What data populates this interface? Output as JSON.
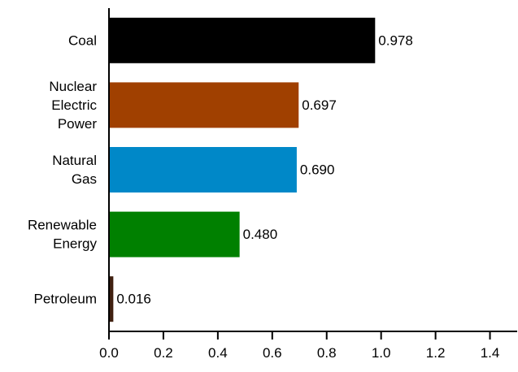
{
  "chart_data": {
    "type": "bar",
    "orientation": "horizontal",
    "title": "",
    "xlabel": "",
    "ylabel": "",
    "categories": [
      [
        "Coal"
      ],
      [
        "Nuclear",
        "Electric",
        "Power"
      ],
      [
        "Natural",
        "Gas"
      ],
      [
        "Renewable",
        "Energy"
      ],
      [
        "Petroleum"
      ]
    ],
    "values": [
      0.978,
      0.697,
      0.69,
      0.48,
      0.016
    ],
    "value_labels": [
      "0.978",
      "0.697",
      "0.690",
      "0.480",
      "0.016"
    ],
    "colors": [
      "#000000",
      "#a04000",
      "#0088c8",
      "#008000",
      "#402010"
    ],
    "xlim": [
      0,
      1.5
    ],
    "xticks": [
      0.0,
      0.2,
      0.4,
      0.6,
      0.8,
      1.0,
      1.2,
      1.4
    ],
    "xtick_labels": [
      "0.0",
      "0.2",
      "0.4",
      "0.6",
      "0.8",
      "1.0",
      "1.2",
      "1.4"
    ],
    "grid": false,
    "legend": "none"
  }
}
